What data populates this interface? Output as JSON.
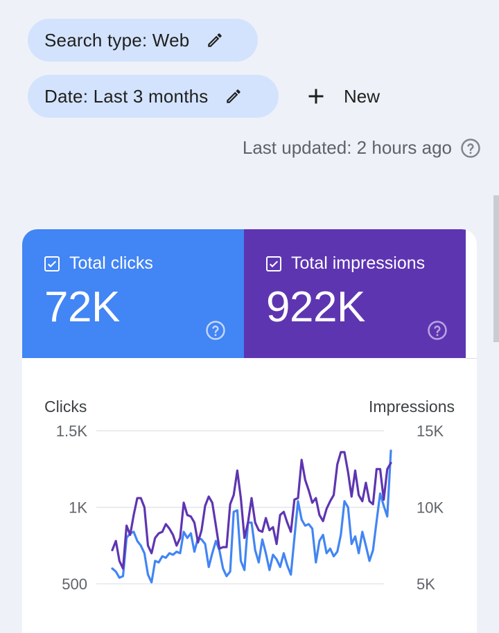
{
  "filters": {
    "search_type": "Search type: Web",
    "date": "Date: Last 3 months",
    "new_label": "New"
  },
  "status": {
    "last_updated": "Last updated: 2 hours ago"
  },
  "metrics": {
    "clicks": {
      "label": "Total clicks",
      "value": "72K",
      "color": "#4285f4"
    },
    "impressions": {
      "label": "Total impressions",
      "value": "922K",
      "color": "#5e35b1"
    }
  },
  "icons": {
    "edit": "pencil-icon",
    "add": "plus-icon",
    "help": "question-circle-icon",
    "checkbox": "checked-box-icon"
  },
  "chart_data": {
    "type": "line",
    "y_left_title": "Clicks",
    "y_right_title": "Impressions",
    "y_left_ticks": [
      "500",
      "1K",
      "1.5K"
    ],
    "y_right_ticks": [
      "5K",
      "10K",
      "15K"
    ],
    "y_left_range": [
      500,
      1500
    ],
    "y_right_range": [
      5000,
      15000
    ],
    "grid": true,
    "series": [
      {
        "name": "Clicks",
        "axis": "left",
        "color": "#4285f4",
        "values": [
          600,
          580,
          540,
          550,
          800,
          830,
          840,
          780,
          750,
          700,
          560,
          510,
          650,
          640,
          680,
          670,
          700,
          690,
          710,
          700,
          840,
          800,
          830,
          710,
          800,
          790,
          760,
          610,
          700,
          780,
          720,
          600,
          550,
          580,
          970,
          980,
          650,
          590,
          900,
          900,
          720,
          640,
          790,
          700,
          590,
          690,
          660,
          610,
          700,
          620,
          560,
          800,
          1040,
          920,
          880,
          890,
          860,
          640,
          780,
          820,
          700,
          730,
          680,
          710,
          820,
          1040,
          1000,
          760,
          810,
          700,
          840,
          750,
          650,
          720,
          910,
          1090,
          1010,
          940,
          1370
        ]
      },
      {
        "name": "Impressions",
        "axis": "right",
        "color": "#5e35b1",
        "values": [
          7200,
          7800,
          6500,
          6000,
          8800,
          8200,
          9500,
          10600,
          10600,
          10000,
          7500,
          7000,
          8000,
          8300,
          8400,
          8900,
          8600,
          8200,
          7500,
          8000,
          10300,
          9500,
          9400,
          9000,
          7700,
          8500,
          10100,
          10700,
          10300,
          8800,
          7300,
          7400,
          7400,
          10200,
          10800,
          12400,
          10600,
          8000,
          9000,
          10600,
          9000,
          8500,
          8400,
          9300,
          8500,
          8700,
          7600,
          9500,
          9700,
          9000,
          8400,
          10500,
          10600,
          13100,
          11800,
          11100,
          10300,
          10600,
          9500,
          9100,
          9900,
          10400,
          10800,
          12800,
          13600,
          13600,
          12300,
          10700,
          12400,
          10800,
          10400,
          11600,
          10400,
          10200,
          12500,
          12500,
          10500,
          12500,
          12900
        ]
      }
    ]
  }
}
